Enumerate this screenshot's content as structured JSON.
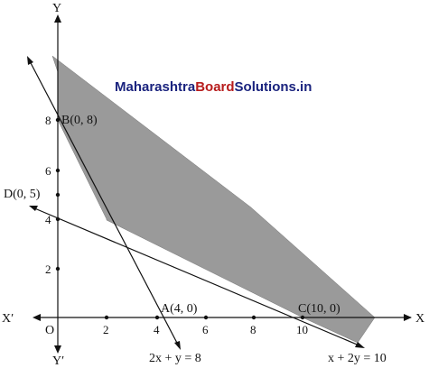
{
  "watermark": {
    "part1": "Maharashtra",
    "part2": "Board",
    "part3": "Solutions.in",
    "color1": "#1a237e",
    "color2": "#b71c1c",
    "color3": "#1a237e"
  },
  "axes": {
    "x_pos": "X",
    "x_neg": "X′",
    "y_pos": "Y",
    "y_neg": "Y′",
    "origin": "O"
  },
  "x_ticks": [
    "2",
    "4",
    "6",
    "8",
    "10"
  ],
  "y_ticks": [
    "2",
    "4",
    "6",
    "8"
  ],
  "points": {
    "A": "A(4, 0)",
    "B": "B(0, 8)",
    "C": "C(10, 0)",
    "D": "D(0, 5)"
  },
  "lines": {
    "line1": "2x + y = 8",
    "line2": "x + 2y = 10"
  },
  "colors": {
    "region_fill": "#9a9a9a",
    "stroke": "#111111"
  }
}
